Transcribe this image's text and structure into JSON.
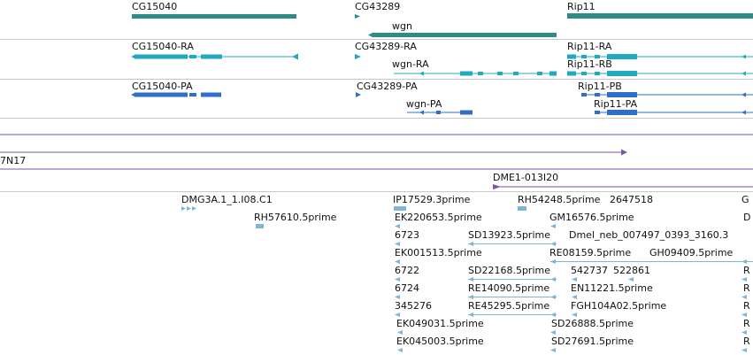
{
  "colors": {
    "gene": "#2e8b86",
    "transcript": "#20a9c0",
    "protein": "#2f6fc8",
    "clone": "#7a55a8",
    "est": "#7fb6d6",
    "separator": "#c9c9c9"
  },
  "tracks": {
    "genes": {
      "labels": [
        "CG15040",
        "CG43289",
        "Rip11",
        "wgn"
      ]
    },
    "transcripts": {
      "labels": [
        "CG15040-RA",
        "CG43289-RA",
        "Rip11-RA",
        "wgn-RA",
        "Rip11-RB"
      ]
    },
    "proteins": {
      "labels": [
        "CG15040-PA",
        "CG43289-PA",
        "Rip11-PB",
        "wgn-PA",
        "Rip11-PA"
      ]
    },
    "clones": {
      "labels": [
        "7N17",
        "DME1-013I20"
      ]
    },
    "ests": {
      "labels": [
        "DMG3A.1_1.I08.C1",
        "IP17529.3prime",
        "RH54248.5prime",
        "2647518",
        "G",
        "RH57610.5prime",
        "EK220653.5prime",
        "GM16576.5prime",
        "D",
        "6723",
        "SD13923.5prime",
        "Dmel_neb_007497_0393_3160.3",
        "EK001513.5prime",
        "RE08159.5prime",
        "GH09409.5prime",
        "6722",
        "SD22168.5prime",
        "542737",
        "522861",
        "R",
        "6724",
        "RE14090.5prime",
        "EN11221.5prime",
        "R",
        "345276",
        "RE45295.5prime",
        "FGH104A02.5prime",
        "R",
        "EK049031.5prime",
        "SD26888.5prime",
        "R",
        "EK045003.5prime",
        "SD27691.5prime",
        "R"
      ]
    }
  }
}
